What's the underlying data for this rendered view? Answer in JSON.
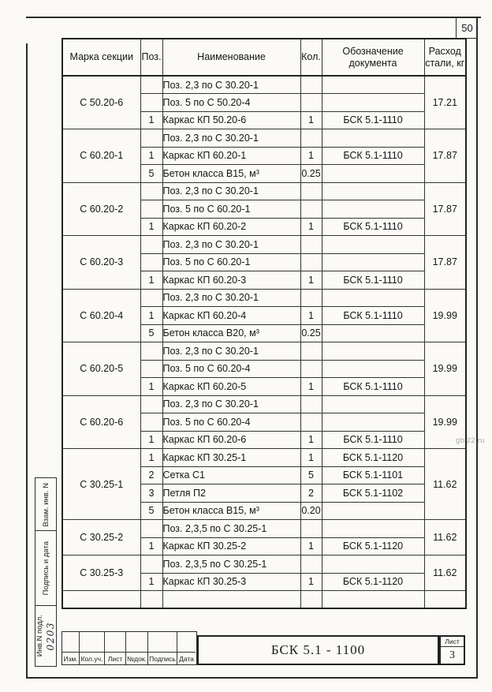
{
  "page": {
    "number": "50",
    "watermark": "gbi22.ru"
  },
  "table": {
    "headers": [
      "Марка секции",
      "Поз.",
      "Наименование",
      "Кол.",
      "Обозначение документа",
      "Расход стали, кг"
    ],
    "groups": [
      {
        "mark": "С 50.20-6",
        "consumption": "17.21",
        "rows": [
          {
            "pos": "",
            "name": "Поз. 2,3 по С 30.20-1",
            "qty": "",
            "doc": ""
          },
          {
            "pos": "",
            "name": "Поз. 5 по С 50.20-4",
            "qty": "",
            "doc": ""
          },
          {
            "pos": "1",
            "name": "Каркас КП 50.20-6",
            "qty": "1",
            "doc": "БСК 5.1-1110"
          }
        ]
      },
      {
        "mark": "С 60.20-1",
        "consumption": "17.87",
        "rows": [
          {
            "pos": "",
            "name": "Поз. 2,3 по С 30.20-1",
            "qty": "",
            "doc": ""
          },
          {
            "pos": "1",
            "name": "Каркас КП 60.20-1",
            "qty": "1",
            "doc": "БСК 5.1-1110"
          },
          {
            "pos": "5",
            "name": "Бетон класса В15, м³",
            "qty": "0.25",
            "doc": ""
          }
        ]
      },
      {
        "mark": "С 60.20-2",
        "consumption": "17.87",
        "rows": [
          {
            "pos": "",
            "name": "Поз. 2,3 по С 30.20-1",
            "qty": "",
            "doc": ""
          },
          {
            "pos": "",
            "name": "Поз. 5 по С 60.20-1",
            "qty": "",
            "doc": ""
          },
          {
            "pos": "1",
            "name": "Каркас КП 60.20-2",
            "qty": "1",
            "doc": "БСК 5.1-1110"
          }
        ]
      },
      {
        "mark": "С 60.20-3",
        "consumption": "17.87",
        "rows": [
          {
            "pos": "",
            "name": "Поз. 2,3 по С 30.20-1",
            "qty": "",
            "doc": ""
          },
          {
            "pos": "",
            "name": "Поз. 5 по С 60.20-1",
            "qty": "",
            "doc": ""
          },
          {
            "pos": "1",
            "name": "Каркас КП 60.20-3",
            "qty": "1",
            "doc": "БСК 5.1-1110"
          }
        ]
      },
      {
        "mark": "С 60.20-4",
        "consumption": "19.99",
        "rows": [
          {
            "pos": "",
            "name": "Поз. 2,3 по С 30.20-1",
            "qty": "",
            "doc": ""
          },
          {
            "pos": "1",
            "name": "Каркас КП 60.20-4",
            "qty": "1",
            "doc": "БСК 5.1-1110"
          },
          {
            "pos": "5",
            "name": "Бетон класса В20, м³",
            "qty": "0.25",
            "doc": ""
          }
        ]
      },
      {
        "mark": "С 60.20-5",
        "consumption": "19.99",
        "rows": [
          {
            "pos": "",
            "name": "Поз. 2,3 по С 30.20-1",
            "qty": "",
            "doc": ""
          },
          {
            "pos": "",
            "name": "Поз. 5 по С 60.20-4",
            "qty": "",
            "doc": ""
          },
          {
            "pos": "1",
            "name": "Каркас КП 60.20-5",
            "qty": "1",
            "doc": "БСК 5.1-1110"
          }
        ]
      },
      {
        "mark": "С 60.20-6",
        "consumption": "19.99",
        "rows": [
          {
            "pos": "",
            "name": "Поз. 2,3 по С 30.20-1",
            "qty": "",
            "doc": ""
          },
          {
            "pos": "",
            "name": "Поз. 5 по С 60.20-4",
            "qty": "",
            "doc": ""
          },
          {
            "pos": "1",
            "name": "Каркас КП 60.20-6",
            "qty": "1",
            "doc": "БСК 5.1-1110"
          }
        ]
      },
      {
        "mark": "С 30.25-1",
        "consumption": "11.62",
        "rows": [
          {
            "pos": "1",
            "name": "Каркас КП 30.25-1",
            "qty": "1",
            "doc": "БСК 5.1-1120"
          },
          {
            "pos": "2",
            "name": "Сетка  С1",
            "qty": "5",
            "doc": "БСК 5.1-1101"
          },
          {
            "pos": "3",
            "name": "Петля П2",
            "qty": "2",
            "doc": "БСК 5.1-1102"
          },
          {
            "pos": "5",
            "name": "Бетон класса В15, м³",
            "qty": "0.20",
            "doc": ""
          }
        ]
      },
      {
        "mark": "С 30.25-2",
        "consumption": "11.62",
        "rows": [
          {
            "pos": "",
            "name": "Поз. 2,3,5 по С 30.25-1",
            "qty": "",
            "doc": ""
          },
          {
            "pos": "1",
            "name": "Каркас КП 30.25-2",
            "qty": "1",
            "doc": "БСК 5.1-1120"
          }
        ]
      },
      {
        "mark": "С 30.25-3",
        "consumption": "11.62",
        "rows": [
          {
            "pos": "",
            "name": "Поз. 2,3,5 по С 30.25-1",
            "qty": "",
            "doc": ""
          },
          {
            "pos": "1",
            "name": "Каркас КП 30.25-3",
            "qty": "1",
            "doc": "БСК 5.1-1120"
          }
        ]
      },
      {
        "mark": "",
        "consumption": "",
        "rows": [
          {
            "pos": "",
            "name": "",
            "qty": "",
            "doc": ""
          }
        ]
      }
    ]
  },
  "stamp": {
    "boxes": [
      {
        "label": "Взам. инв. N"
      },
      {
        "label": "Подпись и дата"
      },
      {
        "label": "Инв.N подл."
      }
    ],
    "inventory_number": "0203"
  },
  "titleblock": {
    "labels": [
      "Изм.",
      "Кол.уч.",
      "Лист",
      "№док.",
      "Подпись",
      "Дата"
    ],
    "doc_number": "БСК 5.1 - 1100",
    "sheet_label": "Лист",
    "sheet_number": "3"
  }
}
